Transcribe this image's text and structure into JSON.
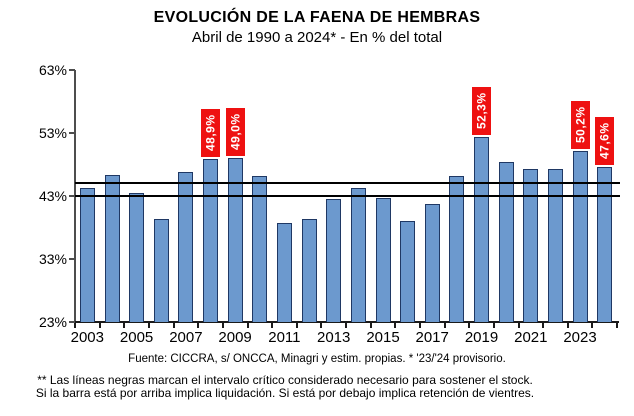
{
  "header": {
    "title": "EVOLUCIÓN DE LA FAENA DE HEMBRAS",
    "subtitle": "Abril de 1990 a 2024* - En % del total"
  },
  "footer": {
    "source": "Fuente: CICCRA, s/ ONCCA, Minagri y estim. propias. * '23/'24  provisorio.",
    "note_line1": "** Las líneas negras marcan el intervalo crítico considerado necesario para sostener el stock.",
    "note_line2": "Si la barra está por arriba implica liquidación. Si está por debajo implica retención de vientres."
  },
  "chart_data": {
    "type": "bar",
    "title": "EVOLUCIÓN DE LA FAENA DE HEMBRAS",
    "subtitle": "Abril de 1990 a 2024* - En % del total",
    "xlabel": "",
    "ylabel": "",
    "ylim": [
      23,
      63
    ],
    "grid": false,
    "legend": false,
    "yticks": [
      {
        "value": 63,
        "label": "63%"
      },
      {
        "value": 53,
        "label": "53%"
      },
      {
        "value": 43,
        "label": "43%"
      },
      {
        "value": 33,
        "label": "33%"
      },
      {
        "value": 23,
        "label": "23%"
      }
    ],
    "x_labeled_slots": [
      {
        "slot": 0,
        "label": "2003"
      },
      {
        "slot": 2,
        "label": "2005"
      },
      {
        "slot": 4,
        "label": "2007"
      },
      {
        "slot": 6,
        "label": "2009"
      },
      {
        "slot": 8,
        "label": "2011"
      },
      {
        "slot": 10,
        "label": "2013"
      },
      {
        "slot": 12,
        "label": "2015"
      },
      {
        "slot": 14,
        "label": "2017"
      },
      {
        "slot": 16,
        "label": "2019"
      },
      {
        "slot": 18,
        "label": "2021"
      },
      {
        "slot": 20,
        "label": "2023"
      }
    ],
    "bars": [
      {
        "year": "2003",
        "value": 44.2,
        "label": null
      },
      {
        "year": "2004",
        "value": 46.3,
        "label": null
      },
      {
        "year": "2005",
        "value": 43.5,
        "label": null
      },
      {
        "year": "2006",
        "value": 39.3,
        "label": null
      },
      {
        "year": "2007",
        "value": 46.8,
        "label": null
      },
      {
        "year": "2008",
        "value": 48.9,
        "label": "48,9%"
      },
      {
        "year": "2009",
        "value": 49.0,
        "label": "49,0%"
      },
      {
        "year": "2010",
        "value": 46.2,
        "label": null
      },
      {
        "year": "2011",
        "value": 38.7,
        "label": null
      },
      {
        "year": "2012",
        "value": 39.3,
        "label": null
      },
      {
        "year": "2013",
        "value": 42.5,
        "label": null
      },
      {
        "year": "2014",
        "value": 44.2,
        "label": null
      },
      {
        "year": "2015",
        "value": 42.7,
        "label": null
      },
      {
        "year": "2016",
        "value": 39.1,
        "label": null
      },
      {
        "year": "2017",
        "value": 41.8,
        "label": null
      },
      {
        "year": "2018",
        "value": 46.2,
        "label": null
      },
      {
        "year": "2019",
        "value": 52.3,
        "label": "52,3%"
      },
      {
        "year": "2020",
        "value": 48.4,
        "label": null
      },
      {
        "year": "2021",
        "value": 47.3,
        "label": null
      },
      {
        "year": "2022",
        "value": 47.3,
        "label": null
      },
      {
        "year": "2023",
        "value": 50.2,
        "label": "50,2%"
      },
      {
        "year": "2024",
        "value": 47.6,
        "label": "47,6%"
      }
    ],
    "reference_lines": [
      {
        "value": 43.0
      },
      {
        "value": 45.0
      }
    ],
    "colors": {
      "bar_fill": "#6C99CE",
      "bar_border": "#1F3864",
      "data_label_bg": "#EE1111",
      "data_label_text": "#FFFFFF",
      "reference_line": "#000000",
      "axis": "#4D4D4D",
      "text": "#000000"
    }
  }
}
